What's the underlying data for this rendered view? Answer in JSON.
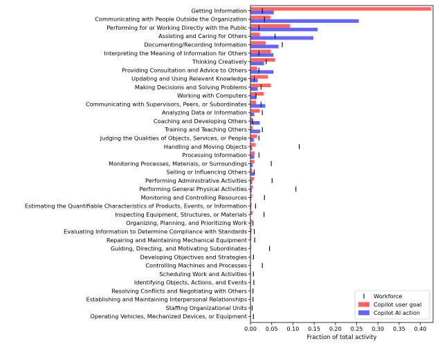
{
  "chart_data": {
    "type": "bar",
    "orientation": "horizontal",
    "xlabel": "Fraction of total activity",
    "ylabel": "",
    "xlim": [
      0,
      0.43
    ],
    "xticks": [
      0.0,
      0.05,
      0.1,
      0.15,
      0.2,
      0.25,
      0.3,
      0.35,
      0.4
    ],
    "xtick_labels": [
      "0.00",
      "0.05",
      "0.10",
      "0.15",
      "0.20",
      "0.25",
      "0.30",
      "0.35",
      "0.40"
    ],
    "grid": false,
    "legend_position": "bottom-right",
    "categories": [
      "Getting Information",
      "Communicating with People Outside the Organization",
      "Performing for or Working Directly with the Public",
      "Assisting and Caring for Others",
      "Documenting/Recording Information",
      "Interpreting the Meaning of Information for Others",
      "Thinking Creatively",
      "Providing Consultation and Advice to Others",
      "Updating and Using Relevant Knowledge",
      "Making Decisions and Solving Problems",
      "Working with Computers",
      "Communicating with Supervisors, Peers, or Subordinates",
      "Analyzing Data or Information",
      "Coaching and Developing Others",
      "Training and Teaching Others",
      "Judging the Qualities of Objects, Services, or People",
      "Handling and Moving Objects",
      "Processing Information",
      "Monitoring Processes, Materials, or Surroundings",
      "Selling or Influencing Others",
      "Performing Administrative Activities",
      "Performing General Physical Activities",
      "Monitoring and Controlling Resources",
      "Estimating the Quantifiable Characteristics of Products, Events, or Information",
      "Inspecting Equipment, Structures, or Materials",
      "Organizing, Planning, and Prioritizing Work",
      "Evaluating Information to Determine Compliance with Standards",
      "Repairing and Maintaining Mechanical Equipment",
      "Guiding, Directing, and Motivating Subordinates",
      "Developing Objectives and Strategies",
      "Controlling Machines and Processes",
      "Scheduling Work and Activities",
      "Identifying Objects, Actions, and Events",
      "Resolving Conflicts and Negotiating with Others",
      "Establishing and Maintaining Interpersonal Relationships",
      "Staffing Organizational Units",
      "Operating Vehicles, Mechanized Devices, or Equipment"
    ],
    "series": [
      {
        "name": "Copilot user goal",
        "color": "#ff6666",
        "values": [
          0.425,
          0.047,
          0.093,
          0.022,
          0.036,
          0.048,
          0.058,
          0.016,
          0.041,
          0.048,
          0.031,
          0.013,
          0.022,
          0.004,
          0.005,
          0.016,
          0.012,
          0.01,
          0.009,
          0.004,
          0.008,
          0.005,
          0.004,
          0.003,
          0.005,
          0.003,
          0.003,
          0.002,
          0.002,
          0.001,
          0.001,
          0.001,
          0.001,
          0.001,
          0.001,
          0.001,
          0.001
        ]
      },
      {
        "name": "Copilot AI action",
        "color": "#6666ee",
        "values": [
          0.055,
          0.255,
          0.158,
          0.148,
          0.066,
          0.054,
          0.032,
          0.054,
          0.017,
          0.017,
          0.014,
          0.035,
          0.009,
          0.022,
          0.023,
          0.008,
          0.004,
          0.009,
          0.005,
          0.01,
          0.004,
          0.003,
          0.002,
          0.002,
          0.001,
          0.002,
          0.002,
          0.001,
          0.001,
          0.001,
          0.001,
          0.001,
          0.001,
          0.001,
          0.001,
          0.001,
          0.001
        ]
      },
      {
        "name": "Workforce",
        "color": "#000000",
        "marker": "|",
        "values": [
          0.028,
          0.033,
          0.02,
          0.058,
          0.075,
          0.02,
          0.037,
          0.02,
          0.009,
          0.025,
          0.013,
          0.025,
          0.028,
          0.005,
          0.028,
          0.02,
          0.115,
          0.02,
          0.049,
          0.009,
          0.051,
          0.107,
          0.033,
          0.012,
          0.032,
          0.006,
          0.009,
          0.01,
          0.045,
          0.007,
          0.028,
          0.007,
          0.008,
          0.006,
          0.006,
          0.004,
          0.007
        ]
      }
    ]
  }
}
